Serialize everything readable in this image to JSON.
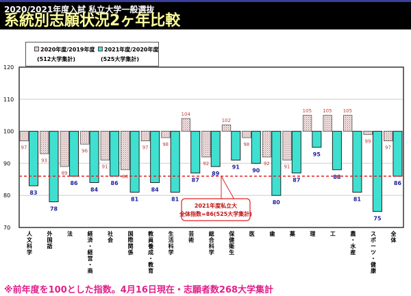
{
  "header": {
    "subtitle": "2020/2021年度入試 私立大学一般選抜",
    "title": "系統別志願状況2ヶ年比較"
  },
  "chart_data": {
    "type": "bar",
    "title": "系統別志願状況2ヶ年比較",
    "categories": [
      "人文科学",
      "外国語",
      "法",
      "経済・経営・商",
      "社会",
      "国際関係",
      "教員養成・教育",
      "生活科学",
      "芸術",
      "総合科学",
      "保健衛生",
      "医",
      "歯",
      "薬",
      "理",
      "工",
      "農・水産",
      "スポーツ・健康",
      "全体"
    ],
    "series": [
      {
        "name": "2020年度/2019年度",
        "note": "(512大学集計)",
        "color": "#e8cfcf",
        "values": [
          97,
          93,
          89,
          96,
          91,
          88,
          97,
          98,
          104,
          92,
          102,
          98,
          92,
          91,
          105,
          105,
          105,
          99,
          97
        ]
      },
      {
        "name": "2021年度/2020年度",
        "note": "(525大学集計)",
        "color": "#40e0d0",
        "values": [
          83,
          78,
          86,
          84,
          86,
          81,
          84,
          81,
          87,
          89,
          91,
          90,
          80,
          87,
          95,
          88,
          81,
          75,
          86
        ]
      }
    ],
    "baseline": 100,
    "ylim": [
      70,
      120
    ],
    "yticks": [
      70,
      80,
      90,
      100,
      110,
      120
    ],
    "grid": true,
    "legend": "top-left",
    "reference_line": {
      "value": 86,
      "color": "#e02020",
      "label_line1": "2021年度私立大",
      "label_line2": "全体指数=86(525大学集計)"
    }
  },
  "footnote": "※前年度を100とした指数。4月16日現在・志願者数268大学集計"
}
